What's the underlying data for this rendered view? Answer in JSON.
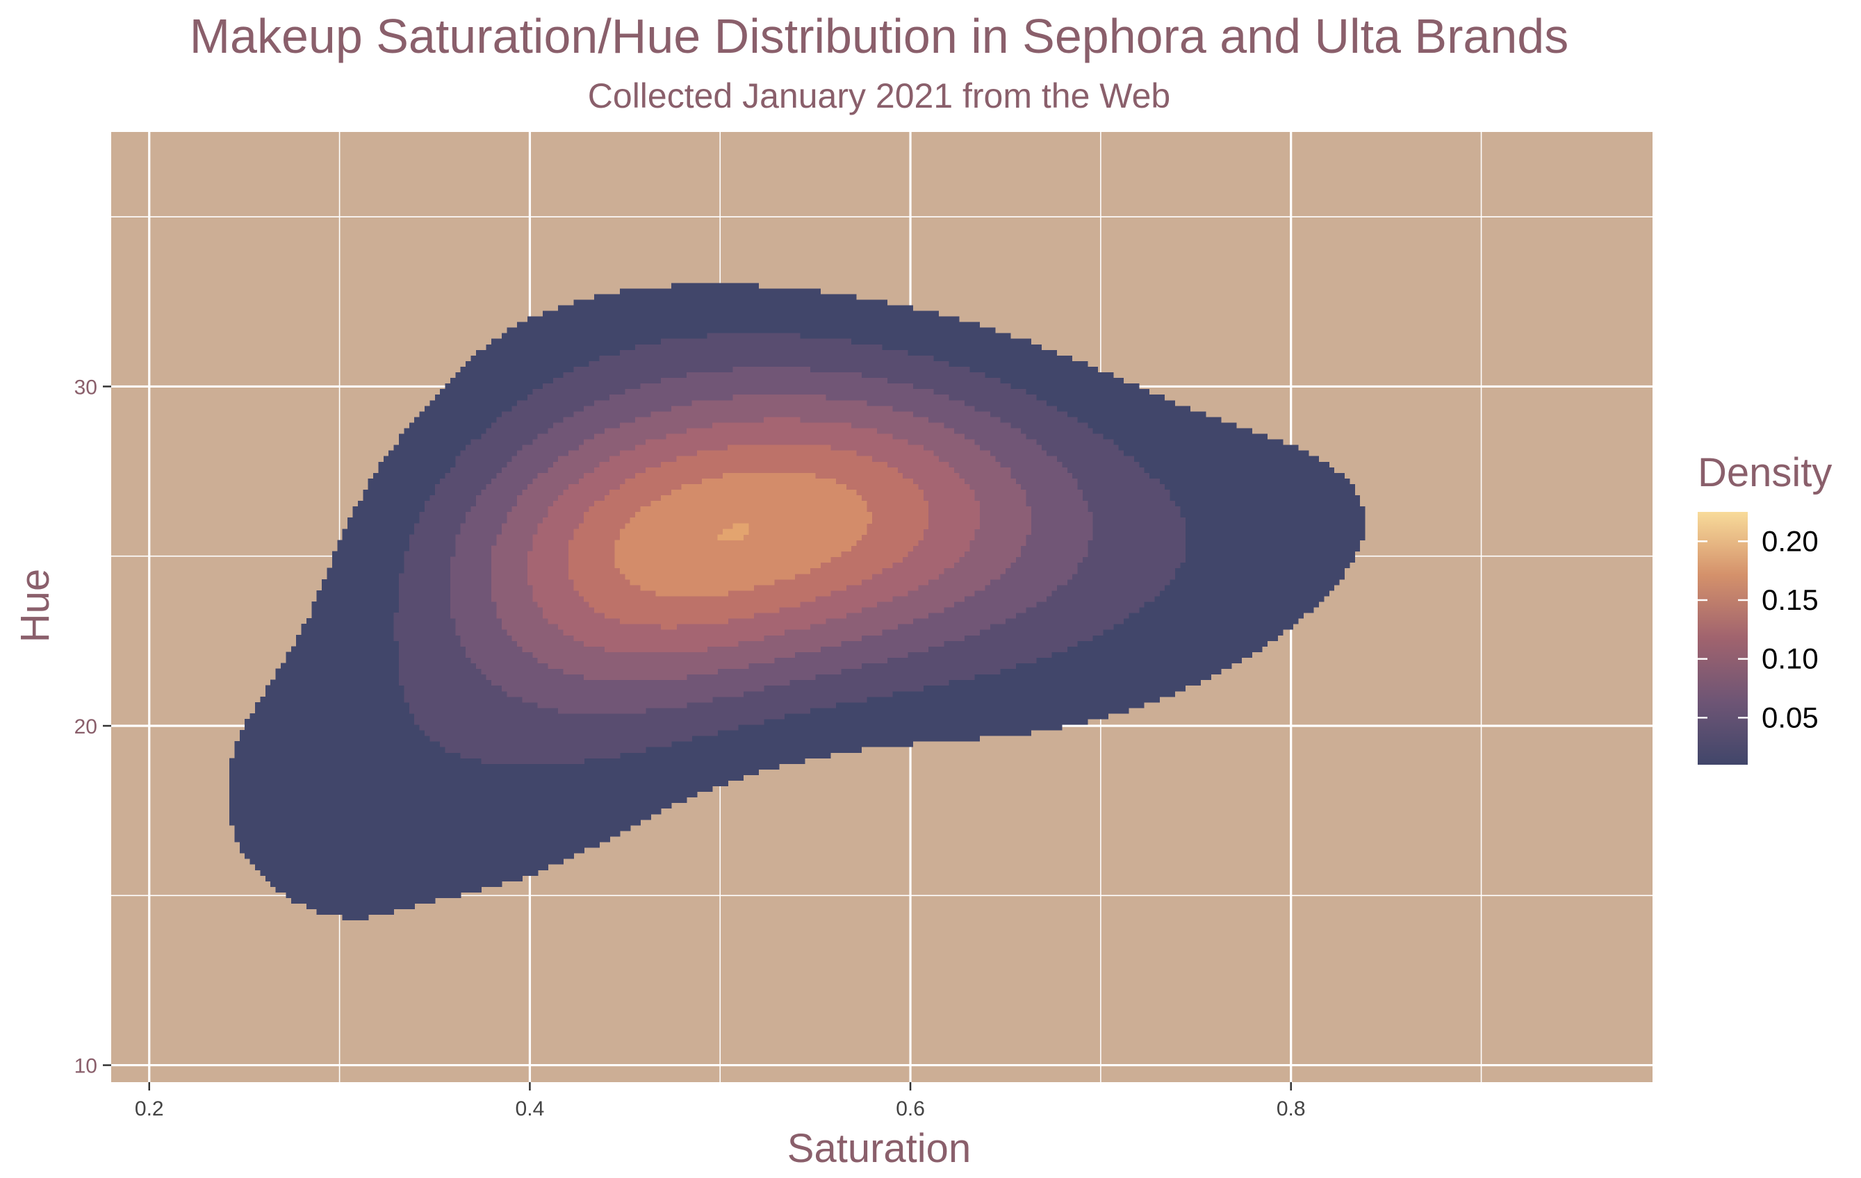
{
  "chart_data": {
    "type": "contour",
    "title": "Makeup Saturation/Hue Distribution in Sephora and Ulta Brands",
    "subtitle": "Collected January 2021 from the Web",
    "xlabel": "Saturation",
    "ylabel": "Hue",
    "xlim": [
      0.18,
      0.99
    ],
    "ylim": [
      9.5,
      37.5
    ],
    "x_ticks": [
      {
        "value": 0.2,
        "label": "0.2"
      },
      {
        "value": 0.4,
        "label": "0.4"
      },
      {
        "value": 0.6,
        "label": "0.6"
      },
      {
        "value": 0.8,
        "label": "0.8"
      }
    ],
    "y_ticks": [
      {
        "value": 10,
        "label": "10"
      },
      {
        "value": 20,
        "label": "20"
      },
      {
        "value": 30,
        "label": "30"
      }
    ],
    "grid": true,
    "background_color": "#ccae95",
    "grid_color": "#ffffff",
    "peak": {
      "saturation": 0.51,
      "hue": 26.0,
      "density": 0.22
    },
    "levels": [
      0.02,
      0.04,
      0.06,
      0.08,
      0.1,
      0.12,
      0.14,
      0.16,
      0.18,
      0.2
    ],
    "level_colors": [
      "#41466a",
      "#594d70",
      "#715676",
      "#8c5f76",
      "#a56572",
      "#bd7269",
      "#d38c6a",
      "#e3a46f",
      "#efbf7e",
      "#f7dc9b"
    ],
    "legend": {
      "title": "Density",
      "placement": "right",
      "ticks": [
        {
          "value": 0.05,
          "label": "0.05"
        },
        {
          "value": 0.1,
          "label": "0.10"
        },
        {
          "value": 0.15,
          "label": "0.15"
        },
        {
          "value": 0.2,
          "label": "0.20"
        }
      ],
      "range": [
        0.01,
        0.225
      ],
      "gradient": [
        "#41466a",
        "#6e5575",
        "#a0636e",
        "#d4916b",
        "#f8db9a"
      ]
    }
  }
}
